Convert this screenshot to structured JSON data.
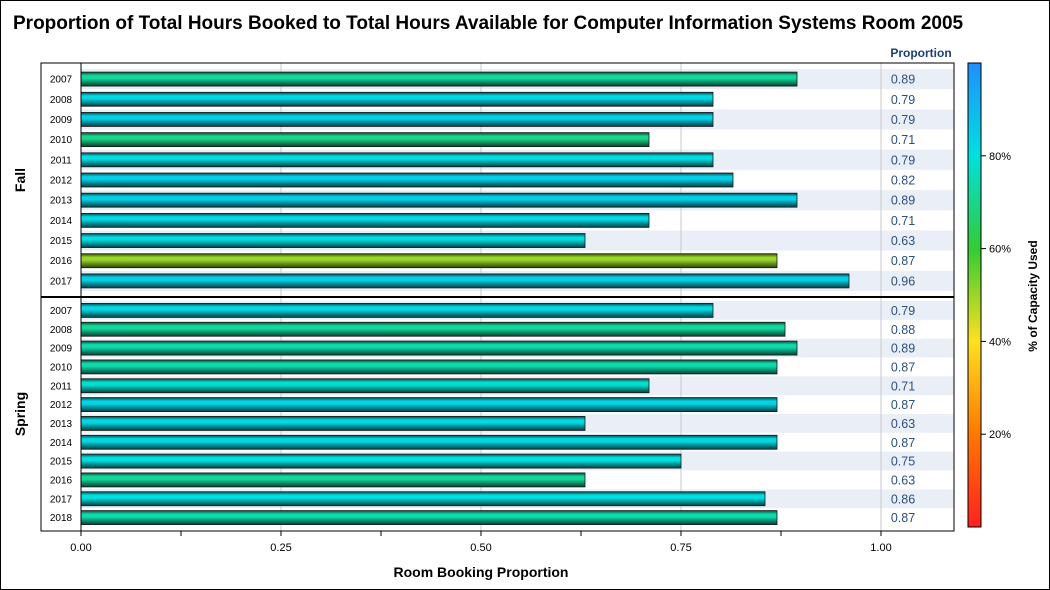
{
  "chart_data": {
    "type": "bar",
    "orientation": "horizontal",
    "title": "Proportion of Total Hours Booked to Total Hours Available for Computer Information Systems Room 2005",
    "xlabel": "Room Booking Proportion",
    "value_column_header": "Proportion",
    "colorbar_label": "% of Capacity Used",
    "xlim": [
      0,
      1.09
    ],
    "xticks": [
      "0.00",
      "0.25",
      "0.50",
      "0.75",
      "1.00"
    ],
    "xtick_values": [
      0,
      0.25,
      0.5,
      0.75,
      1.0
    ],
    "colorbar_ticks": [
      "20%",
      "40%",
      "60%",
      "80%"
    ],
    "colorbar_tick_values": [
      20,
      40,
      60,
      80
    ],
    "colorbar_range": [
      0,
      100
    ],
    "colorbar_colors": [
      "#ff2020",
      "#ff7800",
      "#ffe020",
      "#33cc33",
      "#00e0e0",
      "#1e90ff"
    ],
    "panels": [
      {
        "name": "Fall",
        "years": [
          "2007",
          "2008",
          "2009",
          "2010",
          "2011",
          "2012",
          "2013",
          "2014",
          "2015",
          "2016",
          "2017"
        ],
        "values": [
          0.895,
          0.79,
          0.79,
          0.71,
          0.79,
          0.815,
          0.895,
          0.71,
          0.63,
          0.87,
          0.96
        ],
        "labels": [
          "0.89",
          "0.79",
          "0.79",
          "0.71",
          "0.79",
          "0.82",
          "0.89",
          "0.71",
          "0.63",
          "0.87",
          "0.96"
        ],
        "capacity_used": [
          72,
          82,
          84,
          70,
          81,
          84,
          84,
          82,
          81,
          50,
          84
        ]
      },
      {
        "name": "Spring",
        "years": [
          "2007",
          "2008",
          "2009",
          "2010",
          "2011",
          "2012",
          "2013",
          "2014",
          "2015",
          "2016",
          "2017",
          "2018"
        ],
        "values": [
          0.79,
          0.88,
          0.895,
          0.87,
          0.71,
          0.87,
          0.63,
          0.87,
          0.75,
          0.63,
          0.855,
          0.87
        ],
        "labels": [
          "0.79",
          "0.88",
          "0.89",
          "0.87",
          "0.71",
          "0.87",
          "0.63",
          "0.87",
          "0.75",
          "0.63",
          "0.86",
          "0.87"
        ],
        "capacity_used": [
          82,
          72,
          74,
          74,
          78,
          83,
          82,
          82,
          80,
          72,
          80,
          74
        ]
      }
    ]
  }
}
